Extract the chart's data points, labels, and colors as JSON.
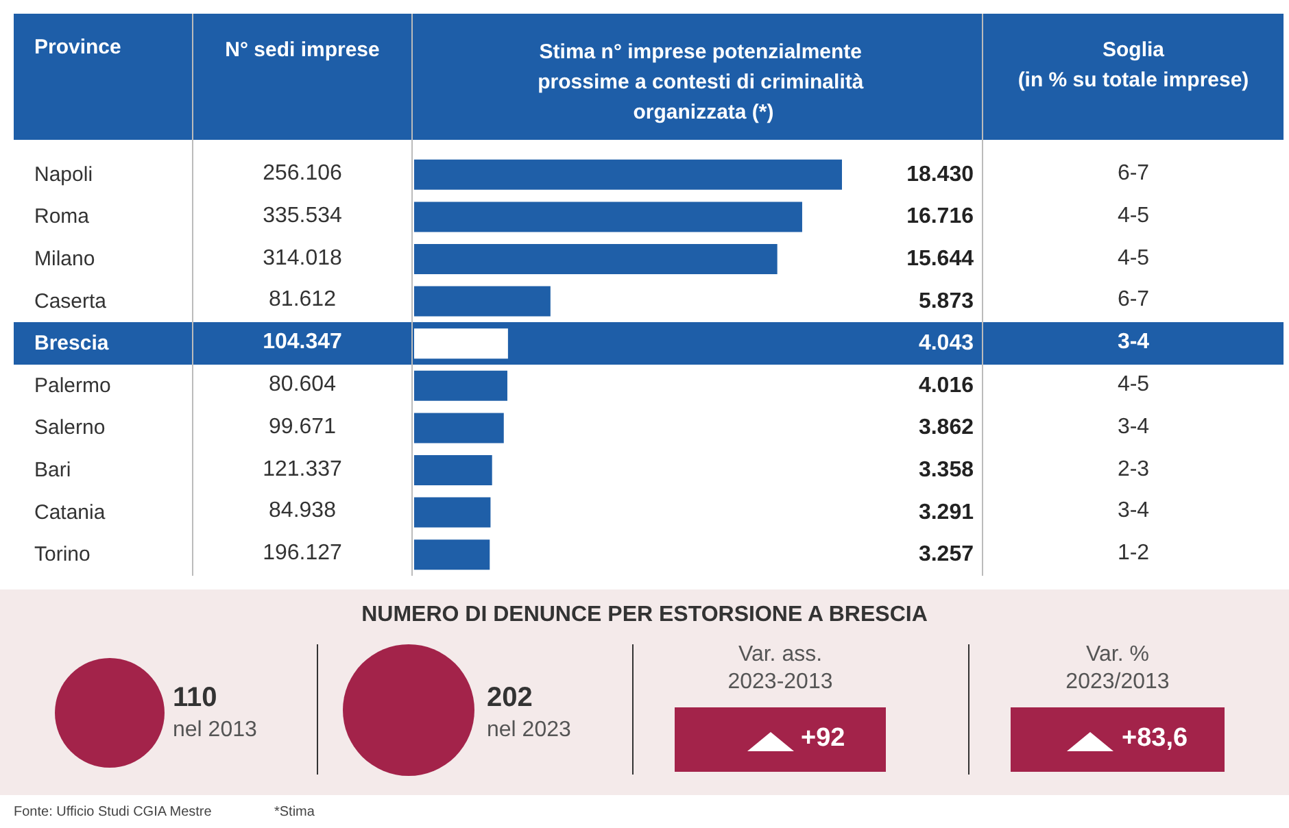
{
  "chart_data": [
    {
      "type": "bar",
      "orientation": "horizontal",
      "title": "Stima n° imprese potenzialmente prossime a contesti di criminalità organizzata (*)",
      "ylabel": "Province",
      "categories": [
        "Napoli",
        "Roma",
        "Milano",
        "Caserta",
        "Brescia",
        "Palermo",
        "Salerno",
        "Bari",
        "Catania",
        "Torino"
      ],
      "values": [
        18430,
        16716,
        15644,
        5873,
        4043,
        4016,
        3862,
        3358,
        3291,
        3257
      ],
      "value_labels": [
        "18.430",
        "16.716",
        "15.644",
        "5.873",
        "4.043",
        "4.016",
        "3.862",
        "3.358",
        "3.291",
        "3.257"
      ],
      "colors": [
        "#1f5fa8",
        "#1f5fa8",
        "#1f5fa8",
        "#1f5fa8",
        "#ffffff",
        "#1f5fa8",
        "#1f5fa8",
        "#1f5fa8",
        "#1f5fa8",
        "#1f5fa8"
      ]
    },
    {
      "type": "other",
      "title": "N° sedi imprese",
      "annotations": [
        "256.106",
        "335.534",
        "314.018",
        "81.612",
        "104.347",
        "80.604",
        "99.671",
        "121.337",
        "84.938",
        "196.127"
      ]
    },
    {
      "type": "other",
      "title": "Soglia",
      "subtitle": "(in % su totale imprese)",
      "annotations": [
        "6-7",
        "4-5",
        "4-5",
        "6-7",
        "3-4",
        "4-5",
        "3-4",
        "2-3",
        "3-4",
        "1-2"
      ]
    },
    {
      "type": "other",
      "title": "NUMERO DI DENUNCE PER ESTORSIONE A BRESCIA",
      "annotations": [
        "110",
        "nel 2013",
        "202",
        "nel 2023",
        "Var. ass.",
        "2023-2013",
        "+92",
        "Var. %",
        "2023/2013",
        "+83,6"
      ]
    },
    {
      "type": "other",
      "annotations": [
        "Fonte: Ufficio Studi CGIA Mestre",
        "*Stima"
      ]
    }
  ]
}
